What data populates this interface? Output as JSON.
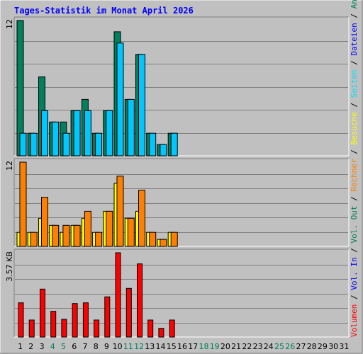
{
  "title": "Tages-Statistik im Monat April 2026",
  "colors": {
    "background": "#C0C0C0",
    "title": "#0000FF",
    "grid": "#808080",
    "hits": "#00805C",
    "files": "#00C8FF",
    "pages": "#00E0FF",
    "visits": "#FFFF00",
    "sites": "#FF8000",
    "kbytes": "#FF0000",
    "weekday": "#000000",
    "weekend": "#00805C"
  },
  "chart_data": [
    {
      "type": "bar",
      "name": "requests-panel",
      "ymax_label": "12",
      "ylim": [
        0,
        12
      ],
      "categories": [
        "1",
        "2",
        "3",
        "4",
        "5",
        "6",
        "7",
        "8",
        "9",
        "10",
        "11",
        "12",
        "13",
        "14",
        "15",
        "16",
        "17",
        "18",
        "19",
        "20",
        "21",
        "22",
        "23",
        "24",
        "25",
        "26",
        "27",
        "28",
        "29",
        "30",
        "31"
      ],
      "series": [
        {
          "name": "Anfragen",
          "values": [
            12,
            2,
            7,
            3,
            3,
            4,
            5,
            2,
            4,
            11,
            5,
            9,
            2,
            1,
            2,
            0,
            0,
            0,
            0,
            0,
            0,
            0,
            0,
            0,
            0,
            0,
            0,
            0,
            0,
            0,
            0
          ]
        },
        {
          "name": "Dateien",
          "values": [
            2,
            2,
            4,
            3,
            2,
            4,
            4,
            2,
            4,
            10,
            5,
            9,
            2,
            1,
            2,
            0,
            0,
            0,
            0,
            0,
            0,
            0,
            0,
            0,
            0,
            0,
            0,
            0,
            0,
            0,
            0
          ]
        }
      ]
    },
    {
      "type": "bar",
      "name": "visits-panel",
      "ymax_label": "12",
      "ylim": [
        0,
        12
      ],
      "categories": [
        "1",
        "2",
        "3",
        "4",
        "5",
        "6",
        "7",
        "8",
        "9",
        "10",
        "11",
        "12",
        "13",
        "14",
        "15",
        "16",
        "17",
        "18",
        "19",
        "20",
        "21",
        "22",
        "23",
        "24",
        "25",
        "26",
        "27",
        "28",
        "29",
        "30",
        "31"
      ],
      "series": [
        {
          "name": "Besuche",
          "values": [
            2,
            2,
            4,
            3,
            2,
            3,
            4,
            2,
            5,
            9,
            4,
            5,
            2,
            1,
            2,
            0,
            0,
            0,
            0,
            0,
            0,
            0,
            0,
            0,
            0,
            0,
            0,
            0,
            0,
            0,
            0
          ]
        },
        {
          "name": "Rechner",
          "values": [
            12,
            2,
            7,
            3,
            3,
            3,
            5,
            2,
            5,
            10,
            4,
            8,
            2,
            1,
            2,
            0,
            0,
            0,
            0,
            0,
            0,
            0,
            0,
            0,
            0,
            0,
            0,
            0,
            0,
            0,
            0
          ]
        }
      ]
    },
    {
      "type": "bar",
      "name": "volume-panel",
      "ymax_label": "3.57 KB",
      "ylim": [
        0,
        3.57
      ],
      "categories": [
        "1",
        "2",
        "3",
        "4",
        "5",
        "6",
        "7",
        "8",
        "9",
        "10",
        "11",
        "12",
        "13",
        "14",
        "15",
        "16",
        "17",
        "18",
        "19",
        "20",
        "21",
        "22",
        "23",
        "24",
        "25",
        "26",
        "27",
        "28",
        "29",
        "30",
        "31"
      ],
      "series": [
        {
          "name": "Volumen",
          "values": [
            1.45,
            0.72,
            2.03,
            1.09,
            0.75,
            1.42,
            1.45,
            0.72,
            1.7,
            3.57,
            2.06,
            3.1,
            0.72,
            0.37,
            0.72,
            0,
            0,
            0,
            0,
            0,
            0,
            0,
            0,
            0,
            0,
            0,
            0,
            0,
            0,
            0,
            0
          ]
        }
      ]
    }
  ],
  "weekend_days": [
    4,
    5,
    11,
    12,
    18,
    19,
    25,
    26
  ],
  "legend": {
    "volume": "Volumen",
    "vol_in": "Vol. In",
    "vol_out": "Vol. Out",
    "sites": "Rechner",
    "visits": "Besuche",
    "pages": "Seiten",
    "files": "Dateien",
    "hits": "Anfragen",
    "separator": " / "
  }
}
